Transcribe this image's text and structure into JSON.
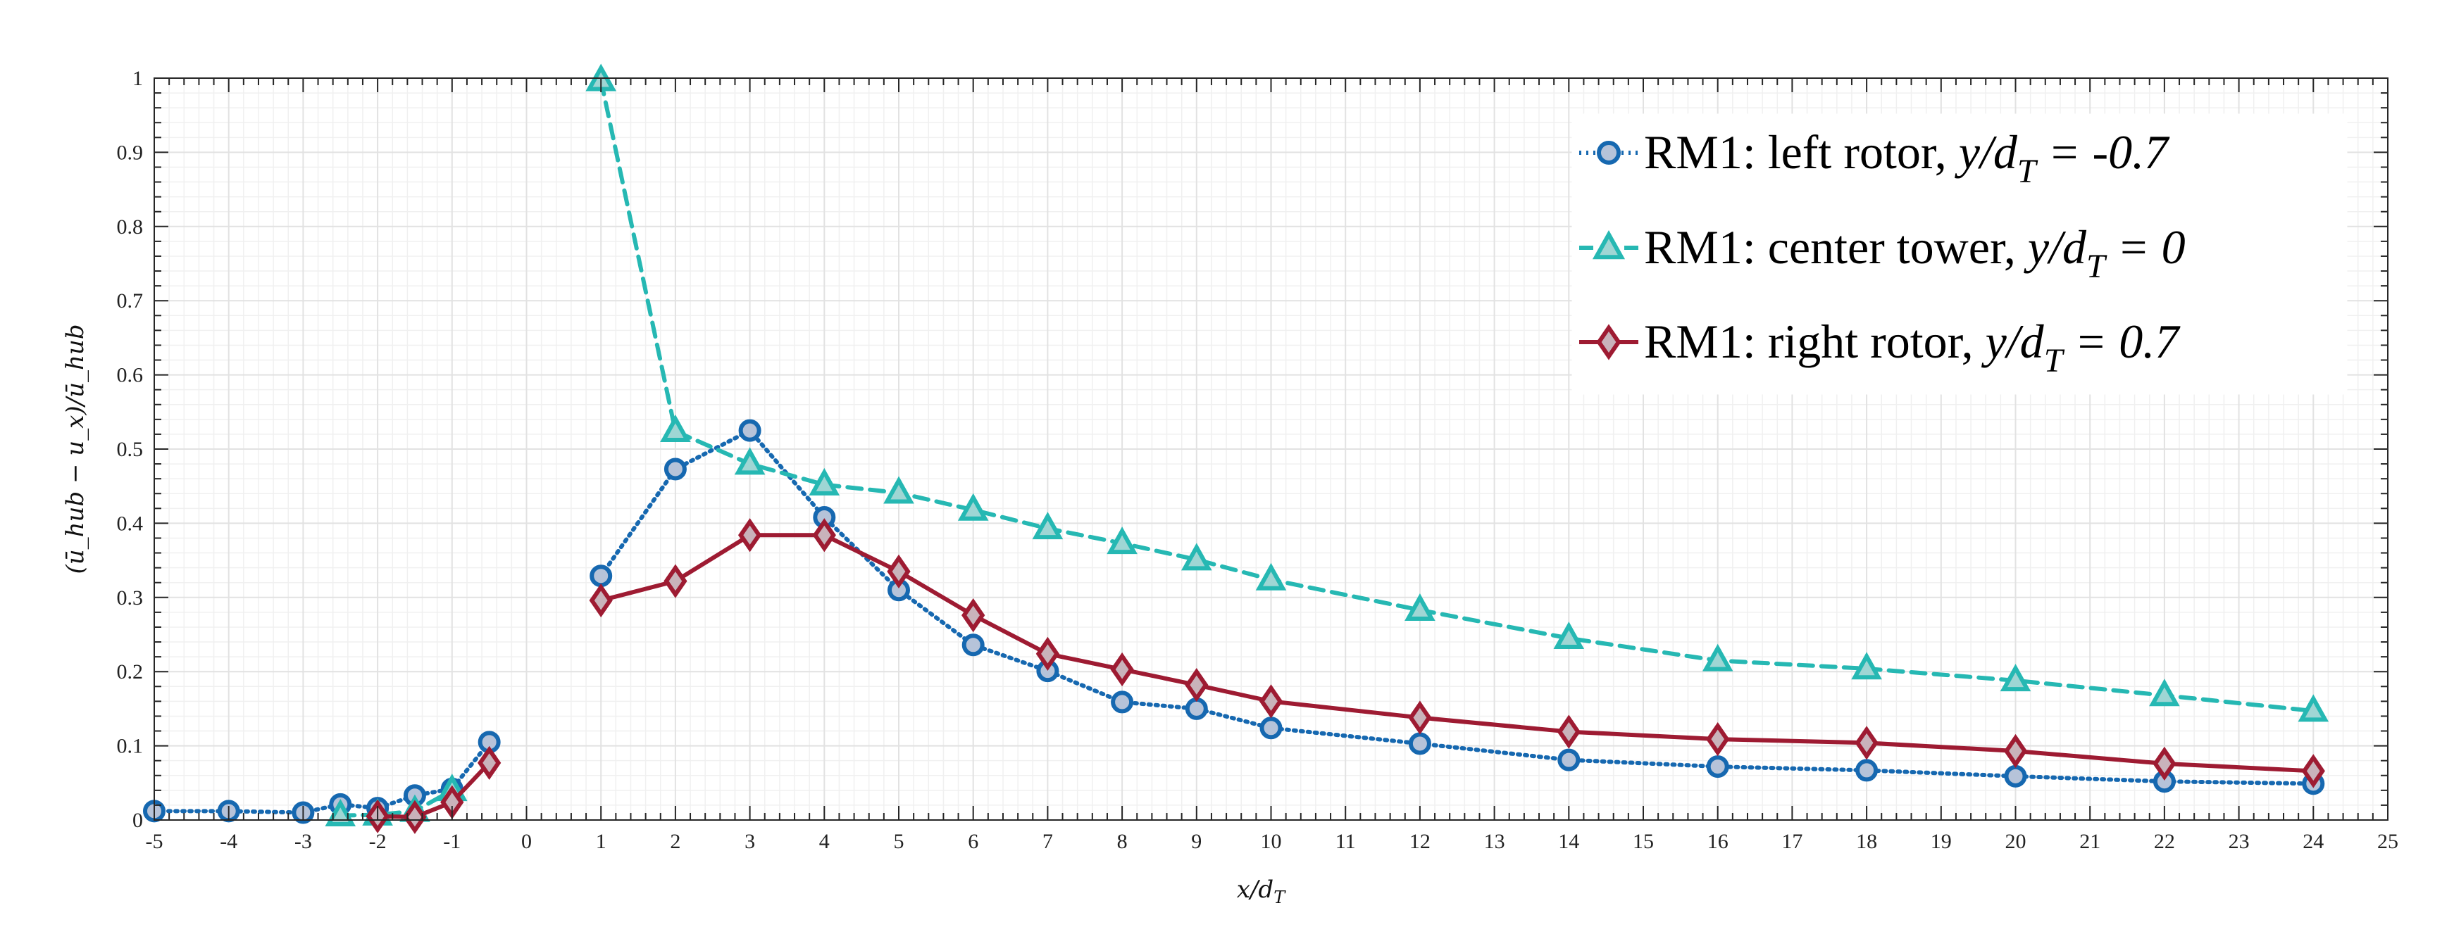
{
  "chart_data": {
    "type": "line",
    "title": "",
    "xlabel": "x/d",
    "xlabel_sub": "T",
    "ylabel": "(ū_hub − u_x)/ū_hub",
    "xlim": [
      -5,
      25
    ],
    "ylim": [
      0,
      1
    ],
    "xticks": [
      -5,
      -4,
      -3,
      -2,
      -1,
      0,
      1,
      2,
      3,
      4,
      5,
      6,
      7,
      8,
      9,
      10,
      11,
      12,
      13,
      14,
      15,
      16,
      17,
      18,
      19,
      20,
      21,
      22,
      23,
      24,
      25
    ],
    "yticks": [
      0,
      0.1,
      0.2,
      0.3,
      0.4,
      0.5,
      0.6,
      0.7,
      0.8,
      0.9,
      1
    ],
    "ytick_labels": [
      "0",
      "0.1",
      "0.2",
      "0.3",
      "0.4",
      "0.5",
      "0.6",
      "0.7",
      "0.8",
      "0.9",
      "1"
    ],
    "grid": true,
    "legend_position": "top-right",
    "series": [
      {
        "name": "RM1: left rotor, y/d_T = -0.7",
        "legend": {
          "prefix": "RM1: left rotor, ",
          "italic": "y/d",
          "sub": "T",
          "suffix": " = -0.7"
        },
        "color": "#1668b0",
        "fill": "#b6c3d9",
        "marker": "circle",
        "linestyle": "dotted",
        "segments": [
          {
            "x": [
              -5,
              -4,
              -3,
              -2.5,
              -2,
              -1.5,
              -1,
              -0.5
            ],
            "y": [
              0.012,
              0.012,
              0.01,
              0.021,
              0.016,
              0.033,
              0.042,
              0.105
            ]
          },
          {
            "x": [
              1,
              2,
              3,
              4,
              5,
              6,
              7,
              8,
              9,
              10,
              12,
              14,
              16,
              18,
              20,
              22,
              24
            ],
            "y": [
              0.329,
              0.473,
              0.525,
              0.408,
              0.31,
              0.236,
              0.201,
              0.159,
              0.15,
              0.124,
              0.103,
              0.081,
              0.072,
              0.067,
              0.059,
              0.052,
              0.049
            ]
          }
        ]
      },
      {
        "name": "RM1: center tower, y/d_T = 0",
        "legend": {
          "prefix": "RM1: center tower, ",
          "italic": "y/d",
          "sub": "T",
          "suffix": " = 0"
        },
        "color": "#26b8b3",
        "fill": "#9fd6d4",
        "marker": "triangle",
        "linestyle": "dashed",
        "segments": [
          {
            "x": [
              -2.5,
              -2,
              -1.5,
              -1
            ],
            "y": [
              0.006,
              0.007,
              0.012,
              0.04
            ]
          },
          {
            "x": [
              1,
              2,
              3,
              4,
              5,
              6,
              7,
              8,
              9,
              10,
              12,
              14,
              16,
              18,
              20,
              22,
              24
            ],
            "y": [
              0.997,
              0.524,
              0.48,
              0.452,
              0.441,
              0.418,
              0.393,
              0.373,
              0.351,
              0.324,
              0.283,
              0.245,
              0.215,
              0.204,
              0.188,
              0.168,
              0.147
            ]
          }
        ]
      },
      {
        "name": "RM1: right rotor, y/d_T = 0.7",
        "legend": {
          "prefix": "RM1: right rotor, ",
          "italic": "y/d",
          "sub": "T",
          "suffix": " = 0.7"
        },
        "color": "#9e1b32",
        "fill": "#c9b3bb",
        "marker": "diamond",
        "linestyle": "solid",
        "segments": [
          {
            "x": [
              -2,
              -1.5,
              -1,
              -0.5
            ],
            "y": [
              0.005,
              0.004,
              0.024,
              0.077
            ]
          },
          {
            "x": [
              1,
              2,
              3,
              4,
              5,
              6,
              7,
              8,
              9,
              10,
              12,
              14,
              16,
              18,
              20,
              22,
              24
            ],
            "y": [
              0.296,
              0.322,
              0.384,
              0.384,
              0.335,
              0.276,
              0.224,
              0.203,
              0.182,
              0.16,
              0.138,
              0.119,
              0.109,
              0.104,
              0.093,
              0.076,
              0.066
            ]
          }
        ]
      }
    ]
  }
}
